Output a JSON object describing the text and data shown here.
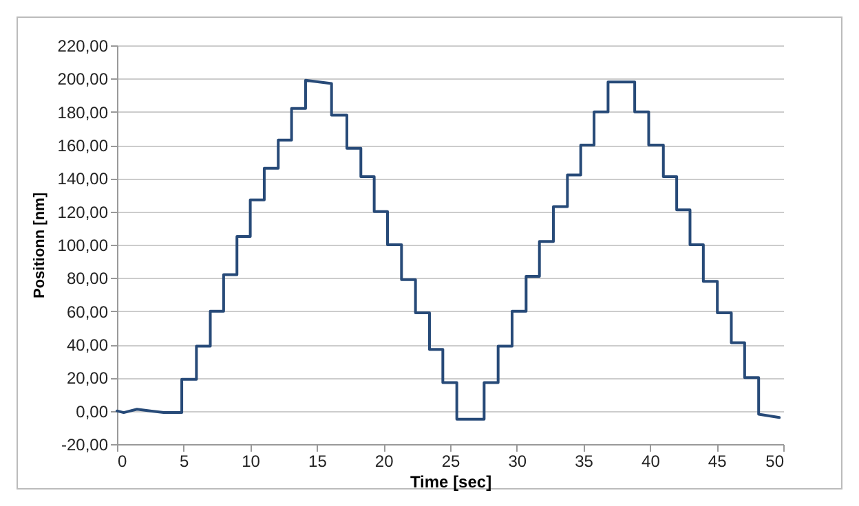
{
  "chart_data": {
    "type": "line",
    "xlabel": "Time [sec]",
    "ylabel": "Positionn [nm]",
    "x": [
      0,
      0.5,
      1.5,
      2.5,
      3.5,
      4.86,
      4.86,
      5.96,
      5.96,
      7.0,
      7.0,
      8.0,
      8.0,
      9.0,
      9.0,
      10.0,
      10.0,
      11.05,
      11.05,
      12.1,
      12.1,
      13.1,
      13.1,
      14.15,
      14.15,
      16.1,
      16.1,
      17.25,
      17.25,
      18.3,
      18.3,
      19.3,
      19.3,
      20.3,
      20.3,
      21.35,
      21.35,
      22.4,
      22.4,
      23.45,
      23.45,
      24.45,
      24.45,
      25.5,
      25.5,
      27.55,
      27.55,
      28.6,
      28.6,
      29.65,
      29.65,
      30.7,
      30.7,
      31.7,
      31.7,
      32.75,
      32.75,
      33.8,
      33.8,
      34.8,
      34.8,
      35.8,
      35.8,
      36.85,
      36.85,
      38.85,
      38.85,
      39.9,
      39.9,
      41.0,
      41.0,
      42.0,
      42.0,
      43.0,
      43.0,
      44.0,
      44.0,
      45.05,
      45.05,
      46.1,
      46.1,
      47.1,
      47.1,
      48.15,
      48.15,
      49.7
    ],
    "series": [
      {
        "color": "#274a78",
        "values": [
          0,
          -1,
          1,
          0,
          -1,
          -1,
          19,
          19,
          39,
          39,
          60,
          60,
          82,
          82,
          105,
          105,
          127,
          127,
          146,
          146,
          163,
          163,
          182,
          182,
          199,
          197,
          178,
          178,
          158,
          158,
          141,
          141,
          120,
          120,
          100,
          100,
          79,
          79,
          59,
          59,
          37,
          37,
          17,
          17,
          -5,
          -5,
          17,
          17,
          39,
          39,
          60,
          60,
          81,
          81,
          102,
          102,
          123,
          123,
          142,
          142,
          160,
          160,
          180,
          180,
          198,
          198,
          180,
          180,
          160,
          160,
          141,
          141,
          121,
          121,
          100,
          100,
          78,
          78,
          59,
          59,
          41,
          41,
          20,
          20,
          -2,
          -4
        ]
      }
    ],
    "xlim": [
      0,
      50
    ],
    "xticks": [
      0,
      5,
      10,
      15,
      20,
      25,
      30,
      35,
      40,
      45,
      50
    ],
    "ylim": [
      -20,
      220
    ],
    "yticks": [
      {
        "value": -20,
        "label": "-20,00"
      },
      {
        "value": 0,
        "label": "0,00"
      },
      {
        "value": 20,
        "label": "20,00"
      },
      {
        "value": 40,
        "label": "40,00"
      },
      {
        "value": 60,
        "label": "60,00"
      },
      {
        "value": 80,
        "label": "80,00"
      },
      {
        "value": 100,
        "label": "100,00"
      },
      {
        "value": 120,
        "label": "120,00"
      },
      {
        "value": 140,
        "label": "140,00"
      },
      {
        "value": 160,
        "label": "160,00"
      },
      {
        "value": 180,
        "label": "180,00"
      },
      {
        "value": 200,
        "label": "200,00"
      },
      {
        "value": 220,
        "label": "220,00"
      }
    ],
    "grid": "y",
    "line_style": "solid",
    "marker": "none"
  }
}
